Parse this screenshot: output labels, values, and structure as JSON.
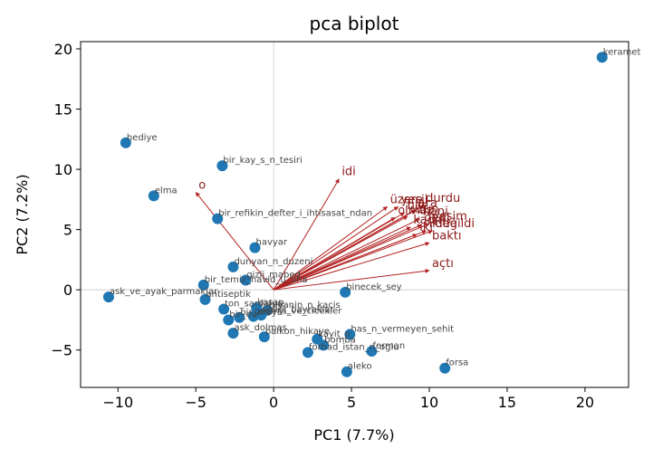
{
  "chart_data": {
    "type": "scatter",
    "title": "pca biplot",
    "xlabel": "PC1 (7.7%)",
    "ylabel": "PC2 (7.2%)",
    "xlim": [
      -12.4,
      22.8
    ],
    "ylim": [
      -8.1,
      20.6
    ],
    "xticks": [
      -10,
      -5,
      0,
      5,
      10,
      15,
      20
    ],
    "yticks": [
      -5,
      0,
      5,
      10,
      15,
      20
    ],
    "grid": "origin lines only",
    "colors": {
      "points": "#1f77b4",
      "arrows": "#b22222",
      "arrow_labels": "#8b1a1a",
      "point_labels": "#444444"
    },
    "points": [
      {
        "label": "keramet",
        "x": 21.1,
        "y": 19.3
      },
      {
        "label": "hediye",
        "x": -9.5,
        "y": 12.2
      },
      {
        "label": "bir_kay_s_n_tesiri",
        "x": -3.3,
        "y": 10.3
      },
      {
        "label": "elma",
        "x": -7.7,
        "y": 7.8
      },
      {
        "label": "bir_refikin_defter_i_ihtisasat_ndan",
        "x": -3.6,
        "y": 5.9
      },
      {
        "label": "havyar",
        "x": -1.2,
        "y": 3.5
      },
      {
        "label": "dunyan_n_duzeni",
        "x": -2.6,
        "y": 1.9
      },
      {
        "label": "gizli_mabed",
        "x": -1.8,
        "y": 0.8
      },
      {
        "label": "bir_temiz_havid_u_una",
        "x": -4.5,
        "y": 0.4
      },
      {
        "label": "binecek_sey",
        "x": 4.6,
        "y": -0.2
      },
      {
        "label": "ask_ve_ayak_parmaklar",
        "x": -10.6,
        "y": -0.6
      },
      {
        "label": "antiseptik",
        "x": -4.4,
        "y": -0.8
      },
      {
        "label": "ton_sardalya",
        "x": -3.2,
        "y": -1.6
      },
      {
        "label": "kasap",
        "x": -1.1,
        "y": -1.5
      },
      {
        "label": "ruyanin_n_kacis",
        "x": -0.4,
        "y": -1.7
      },
      {
        "label": "sinirli_bayraklar",
        "x": -0.8,
        "y": -2.1
      },
      {
        "label": "gecmis_ve_cicekler",
        "x": -1.3,
        "y": -2.2
      },
      {
        "label": "bir_araya",
        "x": -2.2,
        "y": -2.3
      },
      {
        "label": "bir_ev",
        "x": -2.9,
        "y": -2.5
      },
      {
        "label": "ask_dolmas",
        "x": -2.6,
        "y": -3.6
      },
      {
        "label": "balkon_hikaye",
        "x": -0.6,
        "y": -3.9
      },
      {
        "label": "has_n_vermeyen_sehit",
        "x": 4.9,
        "y": -3.7
      },
      {
        "label": "kayit_n",
        "x": 2.8,
        "y": -4.1
      },
      {
        "label": "bomba",
        "x": 3.2,
        "y": -4.6
      },
      {
        "label": "ferman",
        "x": 6.3,
        "y": -5.1
      },
      {
        "label": "forhad_istan_n_oglu",
        "x": 2.2,
        "y": -5.2
      },
      {
        "label": "forsa",
        "x": 11.0,
        "y": -6.5
      },
      {
        "label": "aleko",
        "x": 4.7,
        "y": -6.8
      }
    ],
    "loadings": [
      {
        "label": "o",
        "x": -5.0,
        "y": 8.1
      },
      {
        "label": "idi",
        "x": 4.2,
        "y": 9.2
      },
      {
        "label": "üzere",
        "x": 7.3,
        "y": 6.9
      },
      {
        "label": "yeşil",
        "x": 8.0,
        "y": 6.9
      },
      {
        "label": "durdu",
        "x": 9.6,
        "y": 7.0
      },
      {
        "label": "bile",
        "x": 8.4,
        "y": 6.4
      },
      {
        "label": "ara",
        "x": 9.1,
        "y": 6.6
      },
      {
        "label": "olmaz",
        "x": 7.8,
        "y": 6.0
      },
      {
        "label": "uzun",
        "x": 8.6,
        "y": 6.1
      },
      {
        "label": "hani",
        "x": 9.4,
        "y": 5.9
      },
      {
        "label": "kadın",
        "x": 8.8,
        "y": 5.2
      },
      {
        "label": "dedi",
        "x": 9.5,
        "y": 5.4
      },
      {
        "label": "yeşim",
        "x": 10.0,
        "y": 5.5
      },
      {
        "label": "değildi",
        "x": 10.2,
        "y": 4.9
      },
      {
        "label": "ikide",
        "x": 9.8,
        "y": 4.9
      },
      {
        "label": "iki",
        "x": 9.2,
        "y": 4.6
      },
      {
        "label": "baktı",
        "x": 10.0,
        "y": 3.9
      },
      {
        "label": "açtı",
        "x": 10.0,
        "y": 1.6
      }
    ]
  }
}
